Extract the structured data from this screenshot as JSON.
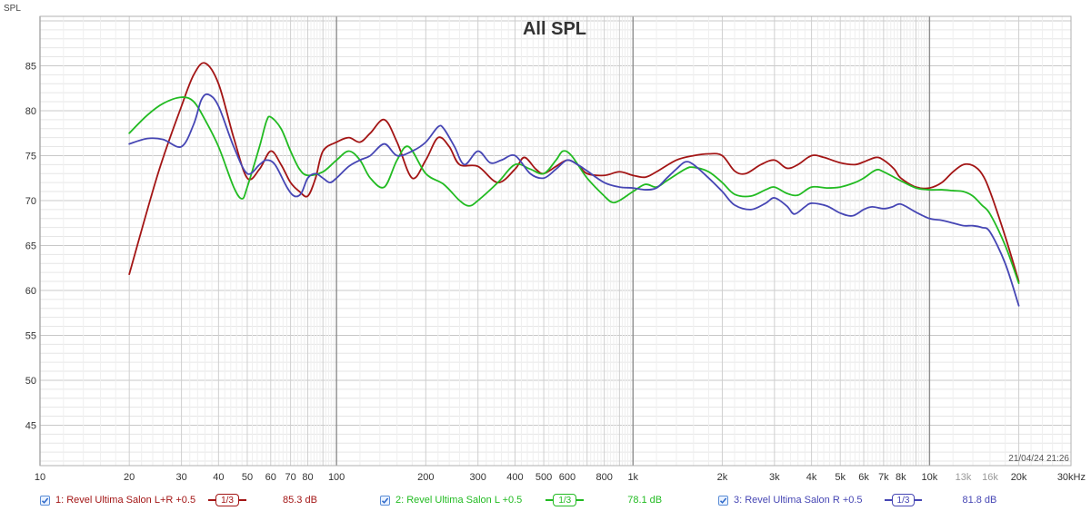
{
  "chart_data": {
    "type": "line",
    "title": "All SPL",
    "ylabel": "SPL",
    "xlabel": "",
    "x_scale": "log",
    "xlim": [
      10,
      30000
    ],
    "ylim": [
      40.5,
      90.5
    ],
    "y_ticks": [
      45,
      50,
      55,
      60,
      65,
      70,
      75,
      80,
      85
    ],
    "y_tick_labels": [
      "45",
      "50",
      "55",
      "60",
      "65",
      "70",
      "75",
      "80",
      "85"
    ],
    "x_ticks": [
      10,
      20,
      30,
      40,
      50,
      60,
      70,
      80,
      100,
      200,
      300,
      400,
      500,
      600,
      800,
      1000,
      2000,
      3000,
      4000,
      5000,
      6000,
      7000,
      8000,
      10000,
      13000,
      16000,
      20000,
      30000
    ],
    "x_tick_labels": [
      "10",
      "20",
      "30",
      "40",
      "50",
      "60",
      "70",
      "80",
      "100",
      "200",
      "300",
      "400",
      "500",
      "600",
      "800",
      "1k",
      "2k",
      "3k",
      "4k",
      "5k",
      "6k",
      "7k",
      "8k",
      "10k",
      "13k",
      "16k",
      "20k",
      "30kHz"
    ],
    "grid": true,
    "timestamp": "21/04/24 21:26",
    "series": [
      {
        "name": "1: Revel Ultima Salon L+R +0.5",
        "color": "#a31515",
        "smoothing": "1/3",
        "value_label": "85.3 dB",
        "points": [
          [
            20,
            61.8
          ],
          [
            25,
            73
          ],
          [
            30,
            80.5
          ],
          [
            33,
            84
          ],
          [
            36,
            85.3
          ],
          [
            40,
            83
          ],
          [
            45,
            77
          ],
          [
            50,
            72.5
          ],
          [
            55,
            73.5
          ],
          [
            60,
            75.5
          ],
          [
            65,
            74
          ],
          [
            70,
            72
          ],
          [
            75,
            71
          ],
          [
            80,
            70.5
          ],
          [
            85,
            72.5
          ],
          [
            90,
            75.5
          ],
          [
            100,
            76.5
          ],
          [
            110,
            77
          ],
          [
            120,
            76.5
          ],
          [
            130,
            77.5
          ],
          [
            145,
            79
          ],
          [
            160,
            76.5
          ],
          [
            180,
            72.5
          ],
          [
            200,
            74.5
          ],
          [
            220,
            77
          ],
          [
            240,
            76
          ],
          [
            260,
            74
          ],
          [
            300,
            73.8
          ],
          [
            350,
            72
          ],
          [
            400,
            73.5
          ],
          [
            430,
            74.8
          ],
          [
            470,
            73.5
          ],
          [
            500,
            73
          ],
          [
            550,
            73.8
          ],
          [
            600,
            74.5
          ],
          [
            650,
            74
          ],
          [
            700,
            73
          ],
          [
            800,
            72.8
          ],
          [
            900,
            73.2
          ],
          [
            1000,
            72.8
          ],
          [
            1100,
            72.6
          ],
          [
            1200,
            73.2
          ],
          [
            1400,
            74.5
          ],
          [
            1600,
            75
          ],
          [
            1800,
            75.2
          ],
          [
            2000,
            75
          ],
          [
            2200,
            73.3
          ],
          [
            2400,
            73
          ],
          [
            2700,
            74
          ],
          [
            3000,
            74.5
          ],
          [
            3300,
            73.6
          ],
          [
            3600,
            74
          ],
          [
            4000,
            75
          ],
          [
            4400,
            74.8
          ],
          [
            5000,
            74.2
          ],
          [
            5600,
            74
          ],
          [
            6000,
            74.3
          ],
          [
            6600,
            74.8
          ],
          [
            7000,
            74.5
          ],
          [
            7600,
            73.5
          ],
          [
            8000,
            72.5
          ],
          [
            9000,
            71.5
          ],
          [
            10000,
            71.4
          ],
          [
            11000,
            72
          ],
          [
            12000,
            73.2
          ],
          [
            13000,
            74
          ],
          [
            14000,
            73.9
          ],
          [
            15000,
            73
          ],
          [
            16000,
            71
          ],
          [
            18000,
            66
          ],
          [
            20000,
            61
          ]
        ]
      },
      {
        "name": "2: Revel Ultima Salon L +0.5",
        "color": "#22bb22",
        "smoothing": "1/3",
        "value_label": "78.1 dB",
        "points": [
          [
            20,
            77.5
          ],
          [
            23,
            79.5
          ],
          [
            26,
            80.8
          ],
          [
            30,
            81.5
          ],
          [
            33,
            81
          ],
          [
            36,
            79
          ],
          [
            40,
            76
          ],
          [
            45,
            71.5
          ],
          [
            48,
            70.2
          ],
          [
            50,
            71.5
          ],
          [
            55,
            76
          ],
          [
            58,
            78.8
          ],
          [
            60,
            79.3
          ],
          [
            65,
            78
          ],
          [
            70,
            75.5
          ],
          [
            75,
            73.5
          ],
          [
            80,
            72.8
          ],
          [
            90,
            73.2
          ],
          [
            100,
            74.5
          ],
          [
            110,
            75.5
          ],
          [
            120,
            74.5
          ],
          [
            130,
            72.5
          ],
          [
            145,
            71.5
          ],
          [
            160,
            74.5
          ],
          [
            175,
            76
          ],
          [
            200,
            73
          ],
          [
            230,
            71.8
          ],
          [
            260,
            70
          ],
          [
            280,
            69.4
          ],
          [
            300,
            70
          ],
          [
            350,
            72
          ],
          [
            400,
            74
          ],
          [
            450,
            73.5
          ],
          [
            500,
            73
          ],
          [
            550,
            74.5
          ],
          [
            580,
            75.5
          ],
          [
            620,
            75
          ],
          [
            700,
            72.5
          ],
          [
            800,
            70.5
          ],
          [
            850,
            69.8
          ],
          [
            900,
            70
          ],
          [
            1000,
            71
          ],
          [
            1100,
            71.8
          ],
          [
            1200,
            71.5
          ],
          [
            1300,
            72.2
          ],
          [
            1500,
            73.5
          ],
          [
            1600,
            73.7
          ],
          [
            1800,
            73.2
          ],
          [
            2000,
            72
          ],
          [
            2200,
            70.7
          ],
          [
            2500,
            70.5
          ],
          [
            2800,
            71.2
          ],
          [
            3000,
            71.5
          ],
          [
            3300,
            70.8
          ],
          [
            3600,
            70.6
          ],
          [
            4000,
            71.5
          ],
          [
            4500,
            71.4
          ],
          [
            5000,
            71.5
          ],
          [
            5600,
            72
          ],
          [
            6000,
            72.5
          ],
          [
            6600,
            73.4
          ],
          [
            7000,
            73.2
          ],
          [
            8000,
            72.2
          ],
          [
            9000,
            71.4
          ],
          [
            10000,
            71.2
          ],
          [
            11000,
            71.2
          ],
          [
            12000,
            71.1
          ],
          [
            13000,
            71
          ],
          [
            14000,
            70.5
          ],
          [
            15000,
            69.5
          ],
          [
            16000,
            68.5
          ],
          [
            18000,
            65
          ],
          [
            20000,
            60.8
          ]
        ]
      },
      {
        "name": "3: Revel Ultima Salon R +0.5",
        "color": "#4646b4",
        "smoothing": "1/3",
        "value_label": "81.8 dB",
        "points": [
          [
            20,
            76.3
          ],
          [
            23,
            76.9
          ],
          [
            26,
            76.8
          ],
          [
            30,
            76
          ],
          [
            33,
            78.5
          ],
          [
            35,
            81.2
          ],
          [
            37,
            81.8
          ],
          [
            40,
            80.5
          ],
          [
            45,
            76
          ],
          [
            50,
            73
          ],
          [
            55,
            74
          ],
          [
            58,
            74.5
          ],
          [
            62,
            74
          ],
          [
            68,
            71.5
          ],
          [
            72,
            70.5
          ],
          [
            76,
            70.8
          ],
          [
            80,
            72.5
          ],
          [
            85,
            73
          ],
          [
            90,
            72.5
          ],
          [
            95,
            72
          ],
          [
            100,
            72.5
          ],
          [
            110,
            73.8
          ],
          [
            120,
            74.5
          ],
          [
            130,
            75
          ],
          [
            145,
            76.3
          ],
          [
            160,
            75
          ],
          [
            180,
            75.5
          ],
          [
            200,
            76.5
          ],
          [
            220,
            78.2
          ],
          [
            230,
            78
          ],
          [
            250,
            76
          ],
          [
            270,
            74
          ],
          [
            300,
            75.5
          ],
          [
            330,
            74.2
          ],
          [
            360,
            74.5
          ],
          [
            400,
            75
          ],
          [
            450,
            73
          ],
          [
            500,
            72.5
          ],
          [
            550,
            73.5
          ],
          [
            600,
            74.5
          ],
          [
            650,
            74
          ],
          [
            700,
            73.3
          ],
          [
            800,
            72
          ],
          [
            900,
            71.5
          ],
          [
            1000,
            71.4
          ],
          [
            1100,
            71.2
          ],
          [
            1200,
            71.4
          ],
          [
            1300,
            72.5
          ],
          [
            1400,
            73.5
          ],
          [
            1500,
            74.3
          ],
          [
            1600,
            74
          ],
          [
            1800,
            72.5
          ],
          [
            2000,
            71
          ],
          [
            2200,
            69.5
          ],
          [
            2500,
            69
          ],
          [
            2800,
            69.7
          ],
          [
            3000,
            70.3
          ],
          [
            3300,
            69.4
          ],
          [
            3500,
            68.5
          ],
          [
            3800,
            69.3
          ],
          [
            4000,
            69.7
          ],
          [
            4500,
            69.4
          ],
          [
            5000,
            68.6
          ],
          [
            5500,
            68.3
          ],
          [
            6000,
            69
          ],
          [
            6400,
            69.3
          ],
          [
            7000,
            69.1
          ],
          [
            7500,
            69.3
          ],
          [
            8000,
            69.6
          ],
          [
            9000,
            68.7
          ],
          [
            10000,
            68
          ],
          [
            11000,
            67.8
          ],
          [
            12000,
            67.5
          ],
          [
            13000,
            67.2
          ],
          [
            14000,
            67.2
          ],
          [
            15000,
            67
          ],
          [
            16000,
            66.5
          ],
          [
            18000,
            63
          ],
          [
            20000,
            58.3
          ]
        ]
      }
    ]
  }
}
